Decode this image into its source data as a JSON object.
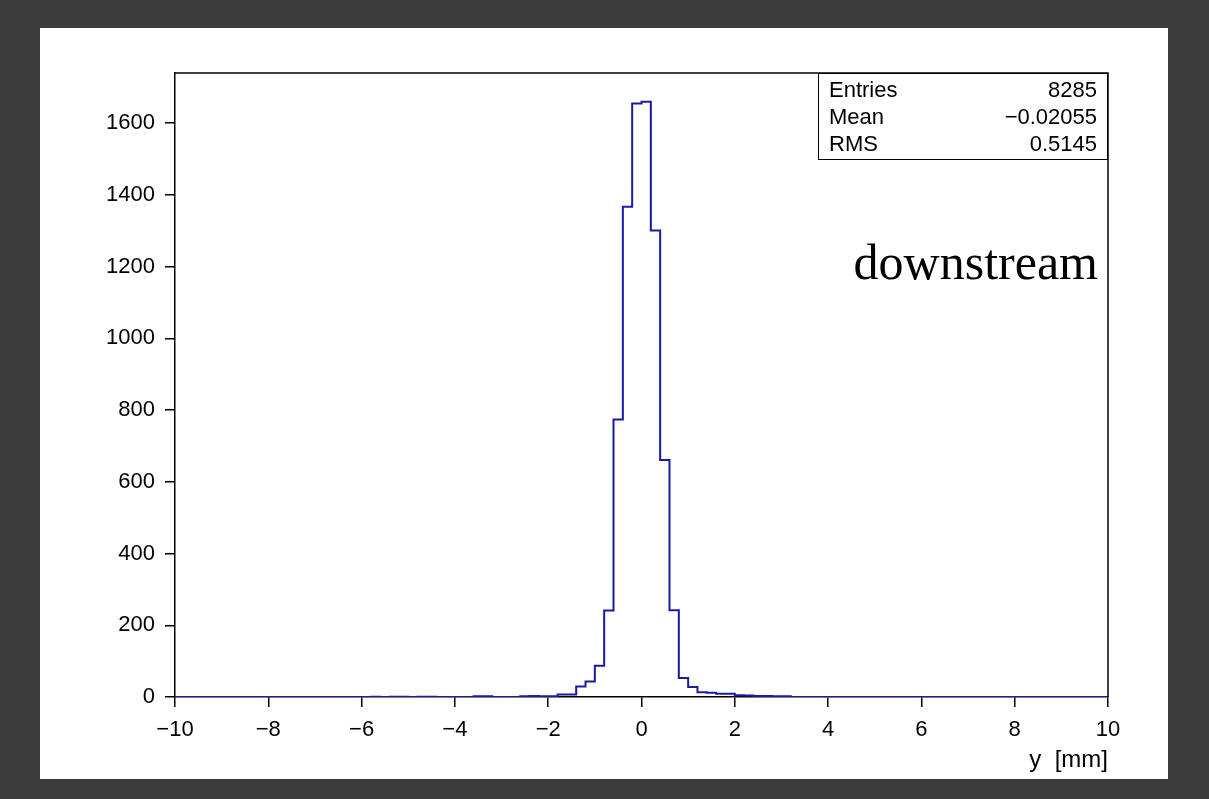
{
  "chart_data": {
    "type": "histogram",
    "xlabel": "y  [mm]",
    "bins": [
      -10,
      -9.8,
      -9.6,
      -9.4,
      -9.2,
      -9,
      -8.8,
      -8.6,
      -8.4,
      -8.2,
      -8,
      -7.8,
      -7.6,
      -7.4,
      -7.2,
      -7,
      -6.8,
      -6.6,
      -6.4,
      -6.2,
      -6,
      -5.8,
      -5.6,
      -5.4,
      -5.2,
      -5,
      -4.8,
      -4.6,
      -4.4,
      -4.2,
      -4,
      -3.8,
      -3.6,
      -3.4,
      -3.2,
      -3,
      -2.8,
      -2.6,
      -2.4,
      -2.2,
      -2,
      -1.8,
      -1.6,
      -1.4,
      -1.2,
      -1,
      -0.8,
      -0.6,
      -0.4,
      -0.2,
      0,
      0.2,
      0.4,
      0.6,
      0.8,
      1,
      1.2,
      1.4,
      1.6,
      1.8,
      2,
      2.2,
      2.4,
      2.6,
      2.8,
      3,
      3.2,
      3.4,
      3.6,
      3.8,
      4,
      4.2,
      4.4,
      4.6,
      4.8,
      5,
      5.2,
      5.4,
      5.6,
      5.8,
      6,
      6.2,
      6.4,
      6.6,
      6.8,
      7,
      7.2,
      7.4,
      7.6,
      7.8,
      8,
      8.2,
      8.4,
      8.6,
      8.8,
      9,
      9.2,
      9.4,
      9.6,
      9.8,
      10
    ],
    "values": [
      0,
      0,
      0,
      0,
      0,
      0,
      0,
      0,
      0,
      0,
      0,
      0,
      0,
      0,
      0,
      0,
      0,
      0,
      0,
      0,
      0,
      1,
      0,
      1,
      1,
      0,
      1,
      1,
      0,
      0,
      0,
      0,
      2,
      2,
      0,
      0,
      0,
      2,
      3,
      2,
      2,
      7,
      7,
      29,
      43,
      87,
      241,
      774,
      1367,
      1655,
      1660,
      1301,
      661,
      242,
      53,
      28,
      13,
      12,
      9,
      9,
      5,
      4,
      3,
      3,
      2,
      2,
      0,
      0,
      0,
      0,
      0,
      0,
      0,
      0,
      0,
      0,
      0,
      0,
      0,
      0,
      0,
      0,
      0,
      0,
      0,
      0,
      0,
      0,
      0,
      0,
      0,
      0,
      0,
      0,
      0,
      0,
      0,
      0,
      0,
      0
    ],
    "color": "#1a1aa6",
    "xlim": [
      -10,
      10
    ],
    "xticks": [
      {
        "value": -10,
        "label": "−10"
      },
      {
        "value": -8,
        "label": "−8"
      },
      {
        "value": -6,
        "label": "−6"
      },
      {
        "value": -4,
        "label": "−4"
      },
      {
        "value": -2,
        "label": "−2"
      },
      0,
      2,
      4,
      6,
      8,
      10
    ],
    "ylim": [
      0,
      1740
    ],
    "yticks": [
      0,
      200,
      400,
      600,
      800,
      1000,
      1200,
      1400,
      1600
    ],
    "annotations": [
      "Entries 8285",
      "Mean −0.02055",
      "RMS 0.5145",
      "downstream"
    ],
    "legend": false
  }
}
